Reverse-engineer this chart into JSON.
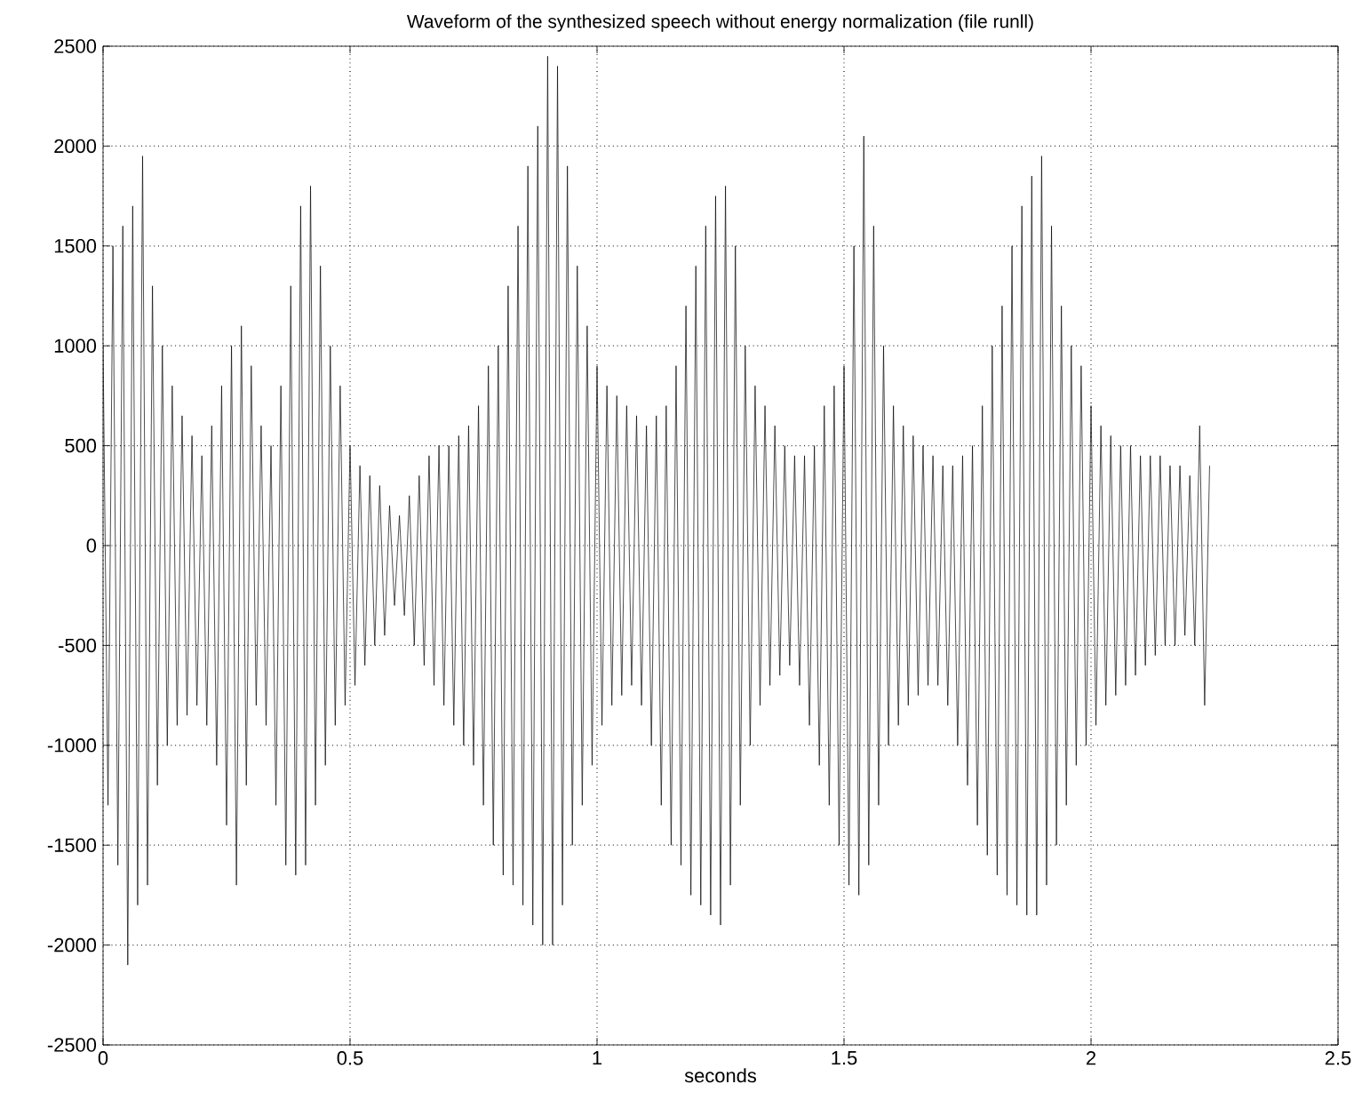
{
  "chart_data": {
    "type": "line",
    "title": "Waveform of the synthesized speech without energy normalization (file runll)",
    "xlabel": "seconds",
    "x": [
      0,
      0.01,
      0.02,
      0.03,
      0.04,
      0.05,
      0.06,
      0.07,
      0.08,
      0.09,
      0.1,
      0.11,
      0.12,
      0.13,
      0.14,
      0.15,
      0.16,
      0.17,
      0.18,
      0.19,
      0.2,
      0.21,
      0.22,
      0.23,
      0.24,
      0.25,
      0.26,
      0.27,
      0.28,
      0.29,
      0.3,
      0.31,
      0.32,
      0.33,
      0.34,
      0.35,
      0.36,
      0.37,
      0.38,
      0.39,
      0.4,
      0.41,
      0.42,
      0.43,
      0.44,
      0.45,
      0.46,
      0.47,
      0.48,
      0.49,
      0.5,
      0.51,
      0.52,
      0.53,
      0.54,
      0.55,
      0.56,
      0.57,
      0.58,
      0.59,
      0.6,
      0.61,
      0.62,
      0.63,
      0.64,
      0.65,
      0.66,
      0.67,
      0.68,
      0.69,
      0.7,
      0.71,
      0.72,
      0.73,
      0.74,
      0.75,
      0.76,
      0.77,
      0.78,
      0.79,
      0.8,
      0.81,
      0.82,
      0.83,
      0.84,
      0.85,
      0.86,
      0.87,
      0.88,
      0.89,
      0.9,
      0.91,
      0.92,
      0.93,
      0.94,
      0.95,
      0.96,
      0.97,
      0.98,
      0.99,
      1,
      1.01,
      1.02,
      1.03,
      1.04,
      1.05,
      1.06,
      1.07,
      1.08,
      1.09,
      1.1,
      1.11,
      1.12,
      1.13,
      1.14,
      1.15,
      1.16,
      1.17,
      1.18,
      1.19,
      1.2,
      1.21,
      1.22,
      1.23,
      1.24,
      1.25,
      1.26,
      1.27,
      1.28,
      1.29,
      1.3,
      1.31,
      1.32,
      1.33,
      1.34,
      1.35,
      1.36,
      1.37,
      1.38,
      1.39,
      1.4,
      1.41,
      1.42,
      1.43,
      1.44,
      1.45,
      1.46,
      1.47,
      1.48,
      1.49,
      1.5,
      1.51,
      1.52,
      1.53,
      1.54,
      1.55,
      1.56,
      1.57,
      1.58,
      1.59,
      1.6,
      1.61,
      1.62,
      1.63,
      1.64,
      1.65,
      1.66,
      1.67,
      1.68,
      1.69,
      1.7,
      1.71,
      1.72,
      1.73,
      1.74,
      1.75,
      1.76,
      1.77,
      1.78,
      1.79,
      1.8,
      1.81,
      1.82,
      1.83,
      1.84,
      1.85,
      1.86,
      1.87,
      1.88,
      1.89,
      1.9,
      1.91,
      1.92,
      1.93,
      1.94,
      1.95,
      1.96,
      1.97,
      1.98,
      1.99,
      2,
      2.01,
      2.02,
      2.03,
      2.04,
      2.05,
      2.06,
      2.07,
      2.08,
      2.09,
      2.1,
      2.11,
      2.12,
      2.13,
      2.14,
      2.15,
      2.16,
      2.17,
      2.18,
      2.19,
      2.2,
      2.21,
      2.22,
      2.23,
      2.24
    ],
    "series": [
      {
        "color": "#000000",
        "values": [
          1000,
          -1300,
          1500,
          -1600,
          1600,
          -2100,
          1700,
          -1800,
          1950,
          -1700,
          1300,
          -1200,
          1000,
          -1000,
          800,
          -900,
          650,
          -850,
          550,
          -800,
          450,
          -900,
          600,
          -1100,
          800,
          -1400,
          1000,
          -1700,
          1100,
          -1200,
          900,
          -800,
          600,
          -900,
          500,
          -1300,
          800,
          -1600,
          1300,
          -1650,
          1700,
          -1600,
          1800,
          -1300,
          1400,
          -1100,
          1000,
          -900,
          800,
          -800,
          500,
          -700,
          400,
          -600,
          350,
          -500,
          300,
          -450,
          200,
          -300,
          150,
          -350,
          250,
          -500,
          350,
          -600,
          450,
          -700,
          500,
          -800,
          500,
          -900,
          550,
          -1000,
          600,
          -1100,
          700,
          -1300,
          900,
          -1500,
          1000,
          -1650,
          1300,
          -1700,
          1600,
          -1800,
          1900,
          -1900,
          2100,
          -2000,
          2450,
          -2000,
          2400,
          -1800,
          1900,
          -1500,
          1400,
          -1300,
          1100,
          -1100,
          900,
          -900,
          800,
          -800,
          750,
          -750,
          700,
          -700,
          650,
          -800,
          600,
          -1000,
          650,
          -1300,
          700,
          -1500,
          900,
          -1600,
          1200,
          -1750,
          1400,
          -1800,
          1600,
          -1850,
          1750,
          -1900,
          1800,
          -1700,
          1500,
          -1300,
          1000,
          -1000,
          800,
          -800,
          700,
          -700,
          600,
          -650,
          500,
          -600,
          450,
          -700,
          450,
          -900,
          500,
          -1100,
          700,
          -1300,
          800,
          -1500,
          900,
          -1700,
          1500,
          -1750,
          2050,
          -1600,
          1600,
          -1300,
          1000,
          -1000,
          700,
          -900,
          600,
          -800,
          550,
          -750,
          500,
          -700,
          450,
          -700,
          400,
          -800,
          400,
          -1000,
          450,
          -1200,
          500,
          -1400,
          700,
          -1550,
          1000,
          -1650,
          1200,
          -1750,
          1500,
          -1800,
          1700,
          -1850,
          1850,
          -1850,
          1950,
          -1700,
          1600,
          -1500,
          1200,
          -1300,
          1000,
          -1100,
          900,
          -1000,
          700,
          -900,
          600,
          -800,
          550,
          -750,
          500,
          -700,
          500,
          -650,
          450,
          -600,
          450,
          -550,
          450,
          -500,
          400,
          -500,
          400,
          -450,
          350,
          -500,
          600,
          -800,
          400
        ]
      }
    ],
    "xlim": [
      0,
      2.5
    ],
    "ylim": [
      -2500,
      2500
    ],
    "xticks": [
      0,
      0.5,
      1,
      1.5,
      2,
      2.5
    ],
    "yticks": [
      -2500,
      -2000,
      -1500,
      -1000,
      -500,
      0,
      500,
      1000,
      1500,
      2000,
      2500
    ],
    "grid": true,
    "line_style": "solid",
    "marker": "none"
  }
}
